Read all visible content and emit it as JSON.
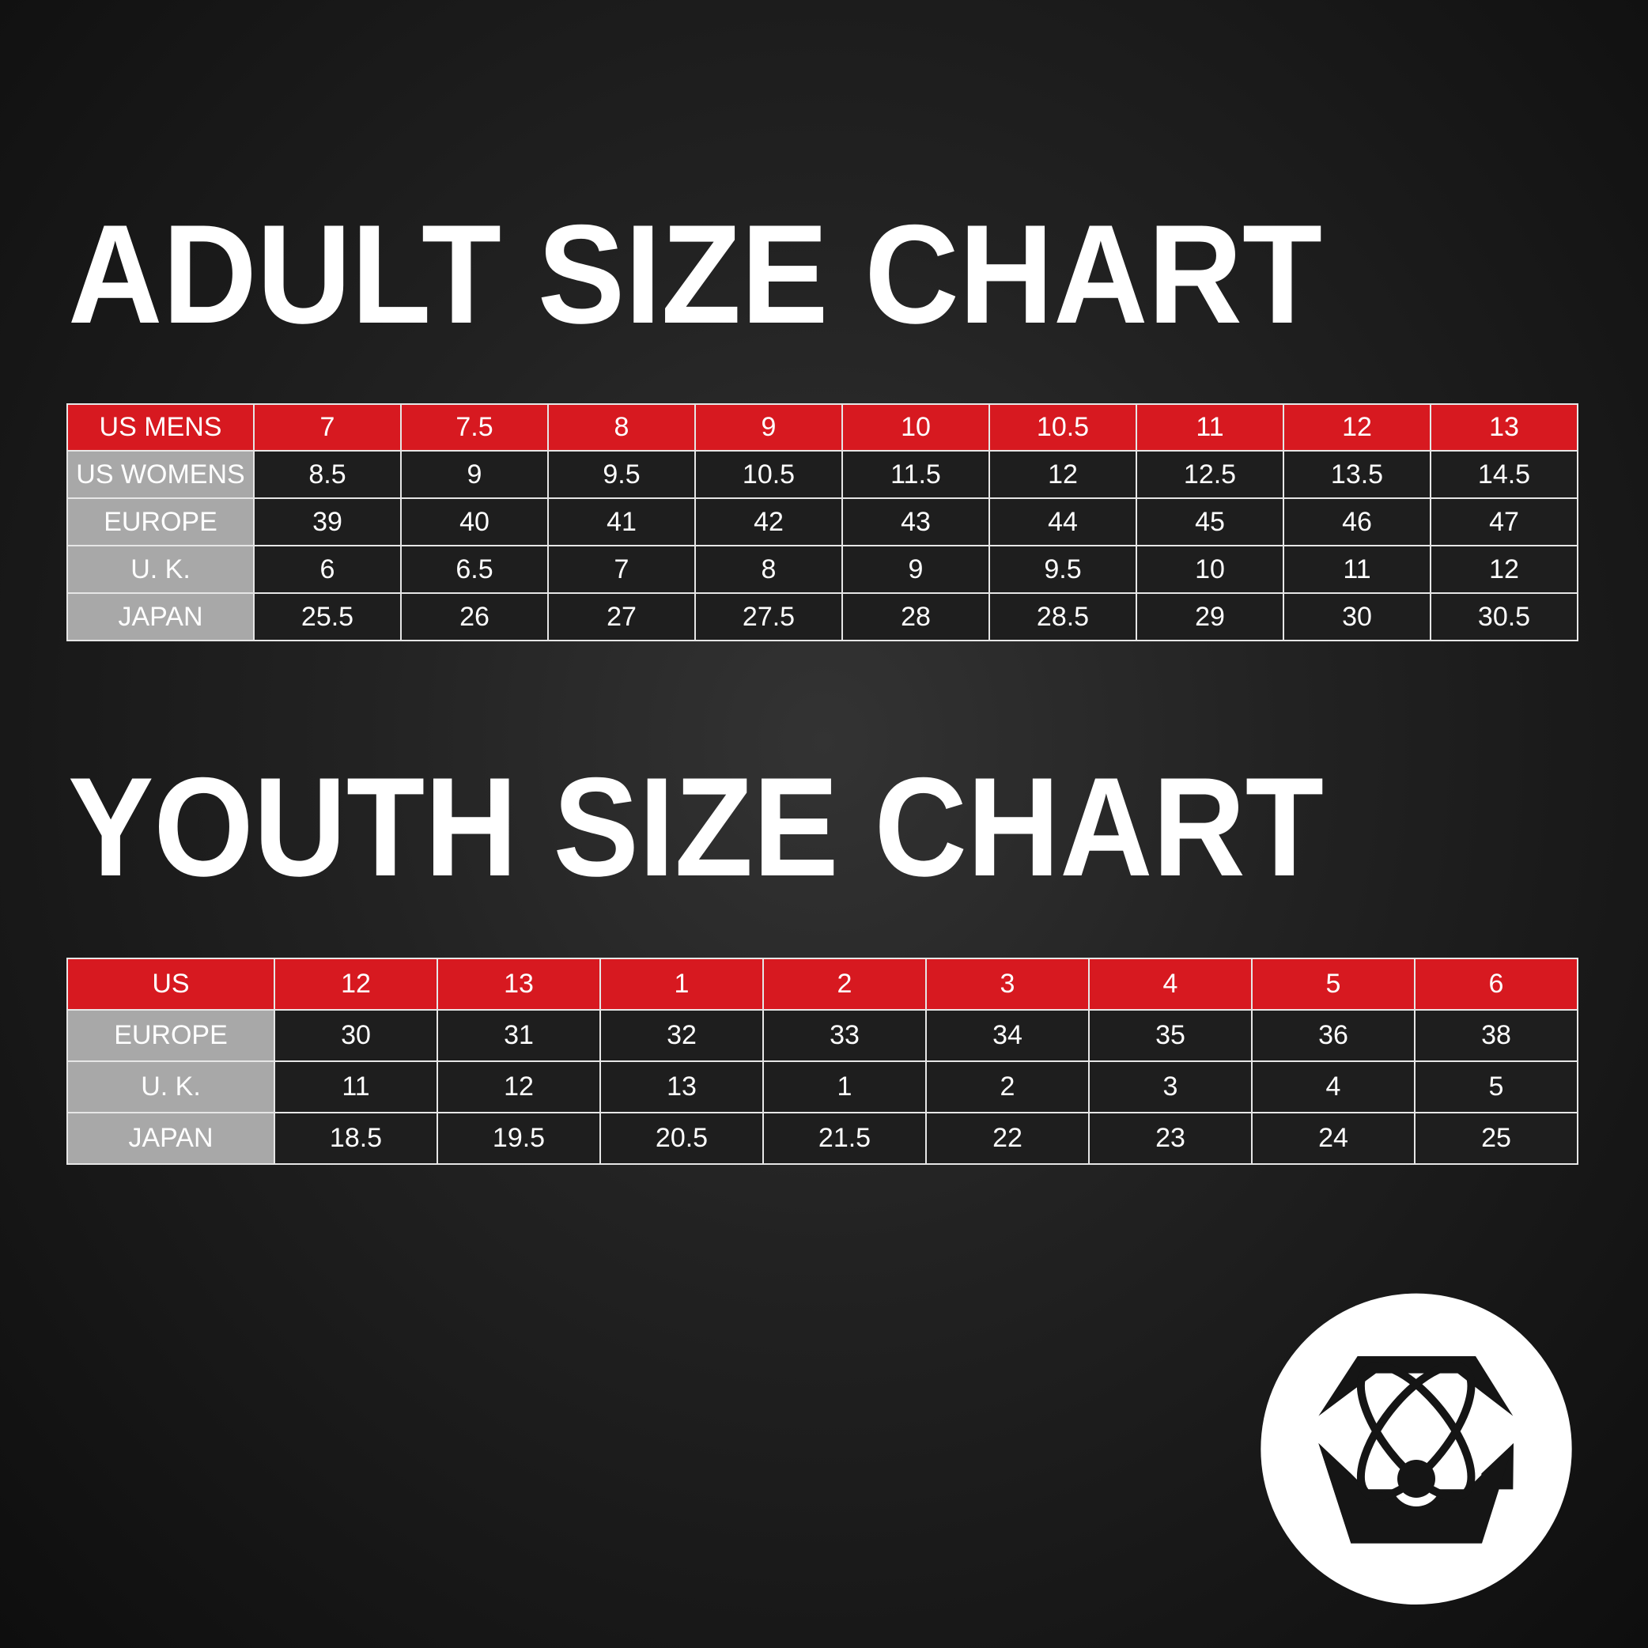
{
  "adult": {
    "title": "ADULT SIZE CHART",
    "header": {
      "label": "US MENS",
      "values": [
        "7",
        "7.5",
        "8",
        "9",
        "10",
        "10.5",
        "11",
        "12",
        "13"
      ]
    },
    "rows": [
      {
        "label": "US WOMENS",
        "values": [
          "8.5",
          "9",
          "9.5",
          "10.5",
          "11.5",
          "12",
          "12.5",
          "13.5",
          "14.5"
        ]
      },
      {
        "label": "EUROPE",
        "values": [
          "39",
          "40",
          "41",
          "42",
          "43",
          "44",
          "45",
          "46",
          "47"
        ]
      },
      {
        "label": "U. K.",
        "values": [
          "6",
          "6.5",
          "7",
          "8",
          "9",
          "9.5",
          "10",
          "11",
          "12"
        ]
      },
      {
        "label": "JAPAN",
        "values": [
          "25.5",
          "26",
          "27",
          "27.5",
          "28",
          "28.5",
          "29",
          "30",
          "30.5"
        ]
      }
    ]
  },
  "youth": {
    "title": "YOUTH SIZE CHART",
    "header": {
      "label": "US",
      "values": [
        "12",
        "13",
        "1",
        "2",
        "3",
        "4",
        "5",
        "6"
      ]
    },
    "rows": [
      {
        "label": "EUROPE",
        "values": [
          "30",
          "31",
          "32",
          "33",
          "34",
          "35",
          "36",
          "38"
        ]
      },
      {
        "label": "U. K.",
        "values": [
          "11",
          "12",
          "13",
          "1",
          "2",
          "3",
          "4",
          "5"
        ]
      },
      {
        "label": "JAPAN",
        "values": [
          "18.5",
          "19.5",
          "20.5",
          "21.5",
          "22",
          "23",
          "24",
          "25"
        ]
      }
    ]
  },
  "colors": {
    "header_red": "#d71920",
    "label_gray": "#a8a8a8",
    "cell_dark": "#1e1e1e",
    "background": "#1a1a1a"
  },
  "logo": {
    "icon": "atom-crown-logo"
  }
}
